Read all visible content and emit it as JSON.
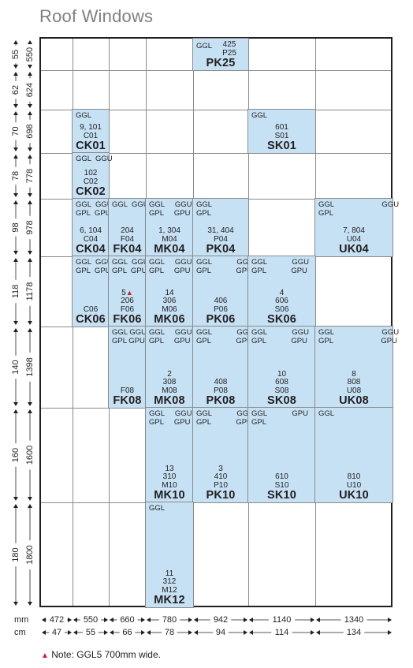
{
  "title": "Roof Windows",
  "axis": {
    "mm_label": "mm",
    "cm_label": "cm",
    "widths_mm": [
      "472",
      "550",
      "660",
      "780",
      "942",
      "1140",
      "1340"
    ],
    "widths_cm": [
      "47",
      "55",
      "66",
      "78",
      "94",
      "114",
      "134"
    ],
    "heights_cm": [
      "55",
      "62",
      "70",
      "78",
      "98",
      "118",
      "140",
      "160",
      "180"
    ],
    "heights_mm": [
      "550",
      "624",
      "698",
      "778",
      "978",
      "1178",
      "1398",
      "1600",
      "1800"
    ]
  },
  "cells": [
    {
      "col": 4,
      "row": 0,
      "types": "GGL",
      "codes": "425\nP25",
      "name": "PK25",
      "layout": "inline"
    },
    {
      "col": 1,
      "row": 2,
      "types": "GGL",
      "codes": "9, 101\nC01",
      "name": "CK01"
    },
    {
      "col": 5,
      "row": 2,
      "types": "GGL",
      "codes": "601\nS01",
      "name": "SK01"
    },
    {
      "col": 1,
      "row": 3,
      "types": "GGL  GGU",
      "codes": "102\nC02",
      "name": "CK02"
    },
    {
      "col": 1,
      "row": 4,
      "types": "GGL  GGU\nGPL  GPU",
      "codes": "6, 104\nC04",
      "name": "CK04"
    },
    {
      "col": 2,
      "row": 4,
      "types": "GGL  GGU",
      "codes": "204\nF04",
      "name": "FK04"
    },
    {
      "col": 3,
      "row": 4,
      "types": "GGL     GGU\nGPL     GPU",
      "codes": "1, 304\nM04",
      "name": "MK04"
    },
    {
      "col": 4,
      "row": 4,
      "types": "GGL\nGPL",
      "codes": "31, 404\nP04",
      "name": "PK04"
    },
    {
      "col": 6,
      "row": 4,
      "types": "GGL                       GGU\nGPL",
      "codes": "7, 804\nU04",
      "name": "UK04"
    },
    {
      "col": 1,
      "row": 5,
      "types": "GGL  GGU\nGPL  GPU",
      "codes": "C06",
      "name": "CK06"
    },
    {
      "col": 2,
      "row": 5,
      "types": "GGL  GGU\nGPL  GPU",
      "codes": "5▲\n206\nF06",
      "name": "FK06"
    },
    {
      "col": 3,
      "row": 5,
      "types": "GGL     GGU\nGPL     GPU",
      "codes": "14\n306\nM06",
      "name": "MK06"
    },
    {
      "col": 4,
      "row": 5,
      "types": "GGL            GGU\nGPL            GPU",
      "codes": "406\nP06",
      "name": "PK06"
    },
    {
      "col": 5,
      "row": 5,
      "types": "GGL            GGU\nGPL            GPU",
      "codes": "4\n606\nS06",
      "name": "SK06"
    },
    {
      "col": 2,
      "row": 6,
      "types": "GGL GGU\nGPL GPU",
      "codes": "F08",
      "name": "FK08"
    },
    {
      "col": 3,
      "row": 6,
      "types": "GGL     GGU\nGPL     GPU",
      "codes": "2\n308\nM08",
      "name": "MK08"
    },
    {
      "col": 4,
      "row": 6,
      "types": "GGL            GGU\nGPL            GPU",
      "codes": "408\nP08",
      "name": "PK08"
    },
    {
      "col": 5,
      "row": 6,
      "types": "GGL            GGU\nGPL            GPU",
      "codes": "10\n608\nS08",
      "name": "SK08"
    },
    {
      "col": 6,
      "row": 6,
      "types": "GGL                       GGU\nGPL                       GPU",
      "codes": "8\n808\nU08",
      "name": "UK08"
    },
    {
      "col": 3,
      "row": 7,
      "types": "GGL     GGU\nGPL     GPU",
      "codes": "13\n310\nM10",
      "name": "MK10"
    },
    {
      "col": 4,
      "row": 7,
      "types": "GGL            GGU\nGPL            GPU",
      "codes": "3\n410\nP10",
      "name": "PK10"
    },
    {
      "col": 5,
      "row": 7,
      "types": "GGL            GPU\nGPL",
      "codes": "610\nS10",
      "name": "SK10"
    },
    {
      "col": 6,
      "row": 7,
      "types": "GGL",
      "codes": "810\nU10",
      "name": "UK10"
    },
    {
      "col": 3,
      "row": 8,
      "types": "GGL",
      "codes": "11\n312\nM12",
      "name": "MK12"
    }
  ],
  "footnote": {
    "marker": "▲",
    "text": "Note: GGL5 700mm wide."
  },
  "colors": {
    "cell_fill": "#c6e1f4",
    "grid_line": "#8a8a8a",
    "marker": "#d21f2b",
    "title": "#7f8083"
  }
}
